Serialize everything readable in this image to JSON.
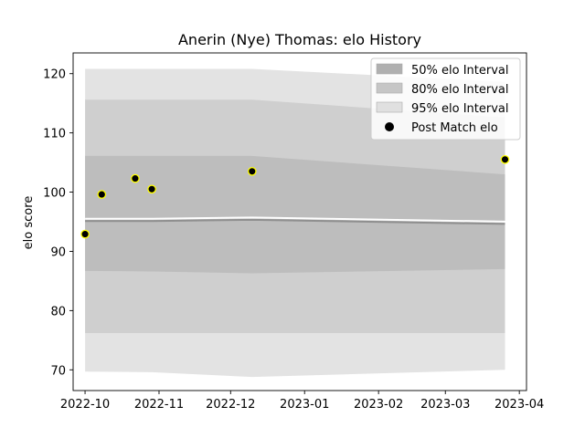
{
  "chart_data": {
    "type": "area",
    "title": "Anerin (Nye) Thomas: elo History",
    "xlabel": "",
    "ylabel": "elo score",
    "xlim": [
      "2022-09-26",
      "2023-04-04"
    ],
    "ylim": [
      66.5,
      123.5
    ],
    "x_ticks": [
      "2022-10",
      "2022-11",
      "2022-12",
      "2023-01",
      "2023-02",
      "2023-03",
      "2023-04"
    ],
    "y_ticks": [
      70,
      80,
      90,
      100,
      110,
      120
    ],
    "grid": false,
    "legend_position": "top-right",
    "bands": [
      {
        "name": "95% elo Interval",
        "color": "#e3e3e3",
        "x": [
          "2022-10-01",
          "2022-10-29",
          "2022-12-10",
          "2023-03-26"
        ],
        "lower": [
          69.7,
          69.6,
          68.8,
          70.0
        ],
        "upper": [
          120.8,
          120.8,
          120.8,
          118.6
        ]
      },
      {
        "name": "80% elo Interval",
        "color": "#cfcfcf",
        "x": [
          "2022-10-01",
          "2022-10-29",
          "2022-12-10",
          "2023-03-26"
        ],
        "lower": [
          76.2,
          76.2,
          76.2,
          76.2
        ],
        "upper": [
          115.6,
          115.6,
          115.6,
          112.6
        ]
      },
      {
        "name": "50% elo Interval",
        "color": "#bdbdbd",
        "x": [
          "2022-10-01",
          "2022-10-29",
          "2022-12-10",
          "2023-03-26"
        ],
        "lower": [
          86.7,
          86.6,
          86.3,
          87.0
        ],
        "upper": [
          106.1,
          106.1,
          106.1,
          103.0
        ]
      }
    ],
    "mean_line": {
      "x": [
        "2022-10-01",
        "2022-10-29",
        "2022-12-10",
        "2023-03-26"
      ],
      "y": [
        95.2,
        95.2,
        95.4,
        94.7
      ]
    },
    "series": [
      {
        "name": "Post Match elo",
        "type": "scatter",
        "color": "#000000",
        "edge_color": "#ffff00",
        "x": [
          "2022-10-01",
          "2022-10-08",
          "2022-10-22",
          "2022-10-29",
          "2022-12-10",
          "2023-03-26"
        ],
        "values": [
          92.9,
          99.6,
          102.3,
          100.5,
          103.5,
          105.5
        ]
      }
    ]
  }
}
